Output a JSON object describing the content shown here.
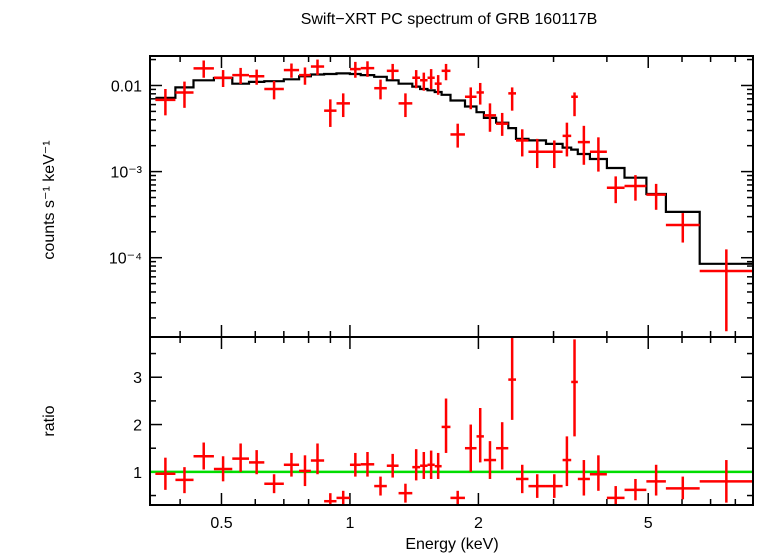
{
  "chart_data": [
    {
      "type": "scatter",
      "panel": "spectrum",
      "title": "Swift−XRT PC spectrum of GRB 160117B",
      "ylabel": "counts s⁻¹ keV⁻¹",
      "xscale": "log",
      "yscale": "log",
      "xlim": [
        0.34,
        8.8
      ],
      "ylim": [
        1.2e-05,
        0.022
      ],
      "y_tick_labels": [
        {
          "value": 0.01,
          "label": "0.01"
        },
        {
          "value": 0.001,
          "label": "10⁻³"
        },
        {
          "value": 0.0001,
          "label": "10⁻⁴"
        }
      ],
      "series": [
        {
          "kind": "data",
          "color": "#ff0000",
          "points": [
            {
              "xlo": 0.35,
              "xhi": 0.39,
              "y": 0.0068,
              "ylo": 0.0045,
              "yhi": 0.0091
            },
            {
              "xlo": 0.39,
              "xhi": 0.43,
              "y": 0.0083,
              "ylo": 0.0055,
              "yhi": 0.0111
            },
            {
              "xlo": 0.43,
              "xhi": 0.48,
              "y": 0.0158,
              "ylo": 0.0123,
              "yhi": 0.0195
            },
            {
              "xlo": 0.48,
              "xhi": 0.53,
              "y": 0.0123,
              "ylo": 0.0096,
              "yhi": 0.0151
            },
            {
              "xlo": 0.53,
              "xhi": 0.58,
              "y": 0.0132,
              "ylo": 0.0104,
              "yhi": 0.016
            },
            {
              "xlo": 0.58,
              "xhi": 0.63,
              "y": 0.0128,
              "ylo": 0.0102,
              "yhi": 0.0153
            },
            {
              "xlo": 0.63,
              "xhi": 0.7,
              "y": 0.0091,
              "ylo": 0.0069,
              "yhi": 0.0113
            },
            {
              "xlo": 0.7,
              "xhi": 0.76,
              "y": 0.0151,
              "ylo": 0.0123,
              "yhi": 0.018
            },
            {
              "xlo": 0.76,
              "xhi": 0.81,
              "y": 0.0132,
              "ylo": 0.0102,
              "yhi": 0.0162
            },
            {
              "xlo": 0.81,
              "xhi": 0.87,
              "y": 0.0166,
              "ylo": 0.0132,
              "yhi": 0.02
            },
            {
              "xlo": 0.87,
              "xhi": 0.93,
              "y": 0.0051,
              "ylo": 0.0033,
              "yhi": 0.0069
            },
            {
              "xlo": 0.93,
              "xhi": 1.0,
              "y": 0.0062,
              "ylo": 0.0043,
              "yhi": 0.0081
            },
            {
              "xlo": 1.0,
              "xhi": 1.06,
              "y": 0.0155,
              "ylo": 0.0123,
              "yhi": 0.0188
            },
            {
              "xlo": 1.06,
              "xhi": 1.14,
              "y": 0.0159,
              "ylo": 0.0126,
              "yhi": 0.0191
            },
            {
              "xlo": 1.14,
              "xhi": 1.22,
              "y": 0.0093,
              "ylo": 0.0069,
              "yhi": 0.0117
            },
            {
              "xlo": 1.22,
              "xhi": 1.3,
              "y": 0.0148,
              "ylo": 0.0117,
              "yhi": 0.0178
            },
            {
              "xlo": 1.3,
              "xhi": 1.4,
              "y": 0.0062,
              "ylo": 0.0043,
              "yhi": 0.0081
            },
            {
              "xlo": 1.4,
              "xhi": 1.46,
              "y": 0.0123,
              "ylo": 0.0093,
              "yhi": 0.0151
            },
            {
              "xlo": 1.46,
              "xhi": 1.52,
              "y": 0.0115,
              "ylo": 0.0087,
              "yhi": 0.0141
            },
            {
              "xlo": 1.52,
              "xhi": 1.58,
              "y": 0.0123,
              "ylo": 0.0091,
              "yhi": 0.0155
            },
            {
              "xlo": 1.58,
              "xhi": 1.64,
              "y": 0.0105,
              "ylo": 0.0078,
              "yhi": 0.0132
            },
            {
              "xlo": 1.64,
              "xhi": 1.72,
              "y": 0.0148,
              "ylo": 0.0115,
              "yhi": 0.0178
            },
            {
              "xlo": 1.72,
              "xhi": 1.86,
              "y": 0.0027,
              "ylo": 0.0019,
              "yhi": 0.0036
            },
            {
              "xlo": 1.86,
              "xhi": 1.98,
              "y": 0.0074,
              "ylo": 0.0053,
              "yhi": 0.0095
            },
            {
              "xlo": 1.98,
              "xhi": 2.06,
              "y": 0.0083,
              "ylo": 0.006,
              "yhi": 0.0107
            },
            {
              "xlo": 2.06,
              "xhi": 2.2,
              "y": 0.0045,
              "ylo": 0.0029,
              "yhi": 0.0062
            },
            {
              "xlo": 2.2,
              "xhi": 2.35,
              "y": 0.0036,
              "ylo": 0.0026,
              "yhi": 0.0048
            },
            {
              "xlo": 2.35,
              "xhi": 2.45,
              "y": 0.0081,
              "ylo": 0.0051,
              "yhi": 0.0095
            },
            {
              "xlo": 2.45,
              "xhi": 2.62,
              "y": 0.0023,
              "ylo": 0.0015,
              "yhi": 0.0031
            },
            {
              "xlo": 2.62,
              "xhi": 2.88,
              "y": 0.0017,
              "ylo": 0.0011,
              "yhi": 0.0024
            },
            {
              "xlo": 2.88,
              "xhi": 3.15,
              "y": 0.0017,
              "ylo": 0.0011,
              "yhi": 0.0023
            },
            {
              "xlo": 3.15,
              "xhi": 3.3,
              "y": 0.0026,
              "ylo": 0.0015,
              "yhi": 0.0037
            },
            {
              "xlo": 3.3,
              "xhi": 3.42,
              "y": 0.0074,
              "ylo": 0.0044,
              "yhi": 0.0083
            },
            {
              "xlo": 3.42,
              "xhi": 3.65,
              "y": 0.0022,
              "ylo": 0.0012,
              "yhi": 0.0034
            },
            {
              "xlo": 3.65,
              "xhi": 4.0,
              "y": 0.0017,
              "ylo": 0.001,
              "yhi": 0.0025
            },
            {
              "xlo": 4.0,
              "xhi": 4.4,
              "y": 0.00065,
              "ylo": 0.00043,
              "yhi": 0.00088
            },
            {
              "xlo": 4.4,
              "xhi": 4.95,
              "y": 0.00068,
              "ylo": 0.00046,
              "yhi": 0.00091
            },
            {
              "xlo": 4.95,
              "xhi": 5.5,
              "y": 0.00054,
              "ylo": 0.00036,
              "yhi": 0.00072
            },
            {
              "xlo": 5.5,
              "xhi": 6.6,
              "y": 0.00024,
              "ylo": 0.00015,
              "yhi": 0.00033
            },
            {
              "xlo": 6.6,
              "xhi": 8.8,
              "y": 7e-05,
              "ylo": 1.4e-05,
              "yhi": 0.000125
            }
          ]
        },
        {
          "kind": "model",
          "color": "#000000",
          "edges": [
            0.35,
            0.39,
            0.43,
            0.48,
            0.53,
            0.58,
            0.63,
            0.7,
            0.76,
            0.81,
            0.87,
            0.93,
            1.0,
            1.06,
            1.14,
            1.22,
            1.3,
            1.4,
            1.46,
            1.52,
            1.58,
            1.64,
            1.72,
            1.86,
            1.98,
            2.06,
            2.2,
            2.35,
            2.45,
            2.62,
            2.88,
            3.15,
            3.3,
            3.42,
            3.65,
            4.0,
            4.4,
            4.95,
            5.5,
            6.6,
            8.8
          ],
          "values": [
            0.0072,
            0.0095,
            0.0115,
            0.0122,
            0.0105,
            0.011,
            0.0112,
            0.0118,
            0.0128,
            0.0134,
            0.0136,
            0.0138,
            0.0136,
            0.0132,
            0.0126,
            0.0115,
            0.0105,
            0.0097,
            0.0091,
            0.0088,
            0.0084,
            0.0078,
            0.0067,
            0.0057,
            0.0049,
            0.0042,
            0.0037,
            0.0032,
            0.0024,
            0.0023,
            0.0021,
            0.0019,
            0.0018,
            0.0016,
            0.0014,
            0.0011,
            0.00085,
            0.00055,
            0.00034,
            8.5e-05
          ]
        }
      ]
    },
    {
      "type": "scatter",
      "panel": "ratio",
      "xlabel": "Energy (keV)",
      "ylabel": "ratio",
      "xscale": "log",
      "yscale": "linear",
      "xlim": [
        0.34,
        8.8
      ],
      "ylim": [
        0.3,
        3.85
      ],
      "x_ticks": [
        {
          "value": 0.5,
          "label": "0.5"
        },
        {
          "value": 1,
          "label": "1"
        },
        {
          "value": 2,
          "label": "2"
        },
        {
          "value": 5,
          "label": "5"
        }
      ],
      "y_ticks": [
        {
          "value": 1,
          "label": "1"
        },
        {
          "value": 2,
          "label": "2"
        },
        {
          "value": 3,
          "label": "3"
        }
      ],
      "reference_line": {
        "y": 1,
        "color": "#00dd00"
      },
      "series": [
        {
          "kind": "data",
          "color": "#ff0000",
          "points": [
            {
              "xlo": 0.35,
              "xhi": 0.39,
              "y": 0.96,
              "ylo": 0.62,
              "yhi": 1.3
            },
            {
              "xlo": 0.39,
              "xhi": 0.43,
              "y": 0.83,
              "ylo": 0.55,
              "yhi": 1.1
            },
            {
              "xlo": 0.43,
              "xhi": 0.48,
              "y": 1.33,
              "ylo": 1.05,
              "yhi": 1.62
            },
            {
              "xlo": 0.48,
              "xhi": 0.53,
              "y": 1.06,
              "ylo": 0.8,
              "yhi": 1.33
            },
            {
              "xlo": 0.53,
              "xhi": 0.58,
              "y": 1.28,
              "ylo": 1.0,
              "yhi": 1.6
            },
            {
              "xlo": 0.58,
              "xhi": 0.63,
              "y": 1.2,
              "ylo": 0.95,
              "yhi": 1.46
            },
            {
              "xlo": 0.63,
              "xhi": 0.7,
              "y": 0.75,
              "ylo": 0.55,
              "yhi": 0.95
            },
            {
              "xlo": 0.7,
              "xhi": 0.76,
              "y": 1.15,
              "ylo": 0.9,
              "yhi": 1.4
            },
            {
              "xlo": 0.76,
              "xhi": 0.81,
              "y": 1.02,
              "ylo": 0.7,
              "yhi": 1.35
            },
            {
              "xlo": 0.81,
              "xhi": 0.87,
              "y": 1.24,
              "ylo": 0.95,
              "yhi": 1.6
            },
            {
              "xlo": 0.87,
              "xhi": 0.93,
              "y": 0.38,
              "ylo": 0.3,
              "yhi": 0.55
            },
            {
              "xlo": 0.93,
              "xhi": 1.0,
              "y": 0.45,
              "ylo": 0.3,
              "yhi": 0.6
            },
            {
              "xlo": 1.0,
              "xhi": 1.06,
              "y": 1.15,
              "ylo": 0.9,
              "yhi": 1.4
            },
            {
              "xlo": 1.06,
              "xhi": 1.14,
              "y": 1.16,
              "ylo": 0.9,
              "yhi": 1.42
            },
            {
              "xlo": 1.14,
              "xhi": 1.22,
              "y": 0.7,
              "ylo": 0.5,
              "yhi": 0.9
            },
            {
              "xlo": 1.22,
              "xhi": 1.3,
              "y": 1.13,
              "ylo": 0.88,
              "yhi": 1.38
            },
            {
              "xlo": 1.3,
              "xhi": 1.4,
              "y": 0.55,
              "ylo": 0.35,
              "yhi": 0.75
            },
            {
              "xlo": 1.4,
              "xhi": 1.46,
              "y": 1.1,
              "ylo": 0.82,
              "yhi": 1.48
            },
            {
              "xlo": 1.46,
              "xhi": 1.52,
              "y": 1.13,
              "ylo": 0.85,
              "yhi": 1.42
            },
            {
              "xlo": 1.52,
              "xhi": 1.58,
              "y": 1.15,
              "ylo": 0.85,
              "yhi": 1.45
            },
            {
              "xlo": 1.58,
              "xhi": 1.64,
              "y": 1.12,
              "ylo": 0.85,
              "yhi": 1.4
            },
            {
              "xlo": 1.64,
              "xhi": 1.72,
              "y": 1.95,
              "ylo": 1.4,
              "yhi": 2.55
            },
            {
              "xlo": 1.72,
              "xhi": 1.86,
              "y": 0.45,
              "ylo": 0.3,
              "yhi": 0.6
            },
            {
              "xlo": 1.86,
              "xhi": 1.98,
              "y": 1.5,
              "ylo": 1.0,
              "yhi": 2.0
            },
            {
              "xlo": 1.98,
              "xhi": 2.06,
              "y": 1.75,
              "ylo": 1.2,
              "yhi": 2.35
            },
            {
              "xlo": 2.06,
              "xhi": 2.2,
              "y": 1.25,
              "ylo": 0.85,
              "yhi": 1.65
            },
            {
              "xlo": 2.2,
              "xhi": 2.35,
              "y": 1.5,
              "ylo": 1.05,
              "yhi": 2.05
            },
            {
              "xlo": 2.35,
              "xhi": 2.45,
              "y": 2.95,
              "ylo": 2.1,
              "yhi": 3.85
            },
            {
              "xlo": 2.45,
              "xhi": 2.62,
              "y": 0.85,
              "ylo": 0.55,
              "yhi": 1.15
            },
            {
              "xlo": 2.62,
              "xhi": 2.88,
              "y": 0.7,
              "ylo": 0.45,
              "yhi": 0.95
            },
            {
              "xlo": 2.88,
              "xhi": 3.15,
              "y": 0.7,
              "ylo": 0.45,
              "yhi": 0.95
            },
            {
              "xlo": 3.15,
              "xhi": 3.3,
              "y": 1.25,
              "ylo": 0.7,
              "yhi": 1.75
            },
            {
              "xlo": 3.3,
              "xhi": 3.42,
              "y": 2.9,
              "ylo": 1.75,
              "yhi": 3.8
            },
            {
              "xlo": 3.42,
              "xhi": 3.65,
              "y": 0.85,
              "ylo": 0.5,
              "yhi": 1.25
            },
            {
              "xlo": 3.65,
              "xhi": 4.0,
              "y": 0.95,
              "ylo": 0.6,
              "yhi": 1.35
            },
            {
              "xlo": 4.0,
              "xhi": 4.4,
              "y": 0.45,
              "ylo": 0.3,
              "yhi": 0.7
            },
            {
              "xlo": 4.4,
              "xhi": 4.95,
              "y": 0.62,
              "ylo": 0.4,
              "yhi": 0.85
            },
            {
              "xlo": 4.95,
              "xhi": 5.5,
              "y": 0.8,
              "ylo": 0.5,
              "yhi": 1.15
            },
            {
              "xlo": 5.5,
              "xhi": 6.6,
              "y": 0.65,
              "ylo": 0.42,
              "yhi": 0.9
            },
            {
              "xlo": 6.6,
              "xhi": 8.8,
              "y": 0.8,
              "ylo": 0.35,
              "yhi": 1.25
            }
          ]
        }
      ]
    }
  ]
}
